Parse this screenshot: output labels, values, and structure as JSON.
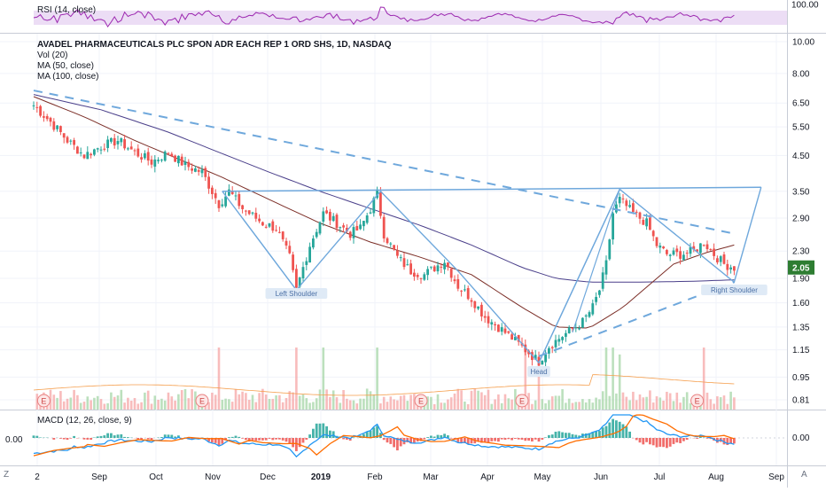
{
  "colors": {
    "up": "#26a69a",
    "down": "#ef5350",
    "vol_up": "#a5d6a7",
    "vol_down": "#f5a5a5",
    "ma50": "#7b2d26",
    "ma100": "#4a3f8a",
    "pattern": "#6fa8dc",
    "rsi": "#9c27b0",
    "rsi_band": "#e7d4f3",
    "macd": "#2196f3",
    "signal": "#ff6d00",
    "price_tag": "#2e7d32"
  },
  "rsi_panel": {
    "label": "RSI (14, close)",
    "axis_value": "100.00"
  },
  "main_panel": {
    "title": "AVADEL PHARMACEUTICALS PLC SPON ADR EACH REP 1 ORD SHS, 1D, NASDAQ",
    "legend": [
      "Vol (20)",
      "MA (50, close)",
      "MA (100, close)"
    ]
  },
  "macd_panel": {
    "label": "MACD (12, 26, close, 9)",
    "left_value": "0.00",
    "right_value": "0.00"
  },
  "corner_labels": {
    "left": "Z",
    "right": "A"
  },
  "chart_data": {
    "type": "candlestick",
    "title": "AVADEL PHARMACEUTICALS PLC SPON ADR EACH REP 1 ORD SHS, 1D, NASDAQ",
    "scale": "log",
    "price_ticks": [
      "10.00",
      "8.00",
      "6.50",
      "5.50",
      "4.50",
      "3.50",
      "2.90",
      "2.30",
      "1.90",
      "1.60",
      "1.35",
      "1.15",
      "0.95",
      "0.81"
    ],
    "x_ticks": [
      "2",
      "Sep",
      "Oct",
      "Nov",
      "Dec",
      "2019",
      "Feb",
      "Mar",
      "Apr",
      "May",
      "Jun",
      "Jul",
      "Aug",
      "Sep"
    ],
    "last_price": "2.05",
    "close_path": [
      [
        0,
        6.4
      ],
      [
        5,
        5.7
      ],
      [
        10,
        5.0
      ],
      [
        15,
        4.5
      ],
      [
        20,
        4.8
      ],
      [
        25,
        5.0
      ],
      [
        30,
        4.6
      ],
      [
        35,
        4.3
      ],
      [
        40,
        4.6
      ],
      [
        45,
        4.2
      ],
      [
        50,
        4.0
      ],
      [
        55,
        3.2
      ],
      [
        58,
        3.5
      ],
      [
        62,
        3.1
      ],
      [
        68,
        2.8
      ],
      [
        72,
        2.7
      ],
      [
        76,
        2.2
      ],
      [
        78,
        1.75
      ],
      [
        82,
        2.4
      ],
      [
        86,
        3.0
      ],
      [
        90,
        2.8
      ],
      [
        94,
        2.6
      ],
      [
        97,
        2.7
      ],
      [
        100,
        3.1
      ],
      [
        102,
        3.45
      ],
      [
        104,
        2.6
      ],
      [
        108,
        2.2
      ],
      [
        112,
        2.0
      ],
      [
        116,
        1.95
      ],
      [
        122,
        2.15
      ],
      [
        126,
        1.8
      ],
      [
        130,
        1.65
      ],
      [
        134,
        1.45
      ],
      [
        138,
        1.35
      ],
      [
        142,
        1.25
      ],
      [
        146,
        1.15
      ],
      [
        150,
        1.06
      ],
      [
        153,
        1.18
      ],
      [
        157,
        1.27
      ],
      [
        160,
        1.33
      ],
      [
        163,
        1.4
      ],
      [
        166,
        1.55
      ],
      [
        168,
        1.75
      ],
      [
        170,
        2.1
      ],
      [
        172,
        3.0
      ],
      [
        174,
        3.3
      ],
      [
        178,
        3.0
      ],
      [
        182,
        2.8
      ],
      [
        185,
        2.4
      ],
      [
        188,
        2.25
      ],
      [
        192,
        2.25
      ],
      [
        196,
        2.3
      ],
      [
        199,
        2.45
      ],
      [
        202,
        2.25
      ],
      [
        205,
        2.1
      ],
      [
        208,
        2.05
      ]
    ],
    "ma50_path": [
      [
        0,
        6.8
      ],
      [
        15,
        5.9
      ],
      [
        30,
        5.0
      ],
      [
        45,
        4.3
      ],
      [
        55,
        3.9
      ],
      [
        70,
        3.3
      ],
      [
        85,
        2.8
      ],
      [
        100,
        2.45
      ],
      [
        115,
        2.2
      ],
      [
        130,
        1.95
      ],
      [
        145,
        1.55
      ],
      [
        155,
        1.35
      ],
      [
        165,
        1.34
      ],
      [
        175,
        1.55
      ],
      [
        190,
        2.1
      ],
      [
        200,
        2.28
      ],
      [
        208,
        2.4
      ]
    ],
    "ma100_path": [
      [
        0,
        6.9
      ],
      [
        20,
        6.2
      ],
      [
        40,
        5.3
      ],
      [
        55,
        4.6
      ],
      [
        70,
        4.0
      ],
      [
        85,
        3.5
      ],
      [
        100,
        3.1
      ],
      [
        115,
        2.75
      ],
      [
        130,
        2.4
      ],
      [
        145,
        2.05
      ],
      [
        155,
        1.9
      ],
      [
        165,
        1.85
      ],
      [
        180,
        1.85
      ],
      [
        195,
        1.86
      ],
      [
        208,
        1.88
      ]
    ],
    "pattern_labels": {
      "left_shoulder": "Left Shoulder",
      "head": "Head",
      "right_shoulder": "Right Shoulder"
    },
    "earnings_marker": "E",
    "earnings_bars": [
      3,
      50,
      115,
      145,
      197
    ]
  }
}
